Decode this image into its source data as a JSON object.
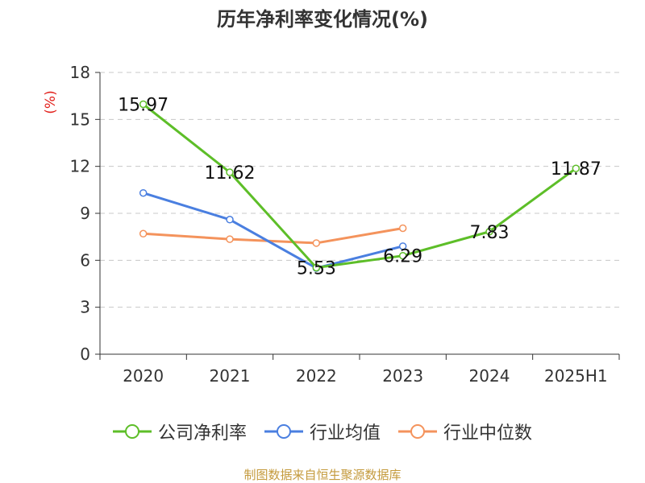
{
  "title": "历年净利率变化情况(%)",
  "source": "制图数据来自恒生聚源数据库",
  "colors": {
    "company": "#5dbe28",
    "industry_avg": "#4a7fe0",
    "industry_median": "#f4935c",
    "ylabel": "#e2211c",
    "grid": "#c8c8c8",
    "axis": "#333333"
  },
  "chart_data": {
    "type": "line",
    "title": "历年净利率变化情况(%)",
    "xlabel": "",
    "ylabel": "(%)",
    "categories": [
      "2020",
      "2021",
      "2022",
      "2023",
      "2024",
      "2025H1"
    ],
    "ylim": [
      0,
      18
    ],
    "yticks": [
      "0",
      "3",
      "6",
      "9",
      "12",
      "15",
      "18"
    ],
    "grid": true,
    "legend": "bottom",
    "series": [
      {
        "key": "company",
        "name": "公司净利率",
        "values": [
          15.97,
          11.62,
          5.53,
          6.29,
          7.83,
          11.87
        ],
        "labels": [
          "15.97",
          "11.62",
          "5.53",
          "6.29",
          "7.83",
          "11.87"
        ]
      },
      {
        "key": "industry_avg",
        "name": "行业均值",
        "values": [
          10.3,
          8.6,
          5.5,
          6.9,
          null,
          null
        ]
      },
      {
        "key": "industry_median",
        "name": "行业中位数",
        "values": [
          7.7,
          7.35,
          7.1,
          8.05,
          null,
          null
        ]
      }
    ]
  }
}
